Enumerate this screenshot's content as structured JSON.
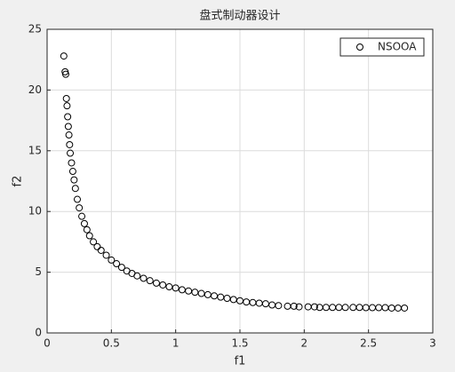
{
  "chart_data": {
    "type": "scatter",
    "title": "盘式制动器设计",
    "x_label": "f1",
    "y_label": "f2",
    "x": [
      0.13,
      0.14,
      0.145,
      0.15,
      0.155,
      0.16,
      0.165,
      0.17,
      0.175,
      0.18,
      0.19,
      0.2,
      0.21,
      0.22,
      0.235,
      0.25,
      0.27,
      0.29,
      0.31,
      0.33,
      0.36,
      0.39,
      0.42,
      0.46,
      0.5,
      0.54,
      0.58,
      0.62,
      0.66,
      0.7,
      0.75,
      0.8,
      0.85,
      0.9,
      0.95,
      1.0,
      1.05,
      1.1,
      1.15,
      1.2,
      1.25,
      1.3,
      1.35,
      1.4,
      1.45,
      1.5,
      1.55,
      1.6,
      1.65,
      1.7,
      1.75,
      1.8,
      1.87,
      1.92,
      1.96,
      2.03,
      2.08,
      2.12,
      2.17,
      2.22,
      2.27,
      2.32,
      2.38,
      2.43,
      2.48,
      2.53,
      2.58,
      2.63,
      2.68,
      2.73,
      2.78
    ],
    "series": [
      {
        "name": "NSOOA",
        "color": "#000000",
        "values": [
          22.8,
          21.5,
          21.3,
          19.3,
          18.7,
          17.8,
          17.0,
          16.3,
          15.5,
          14.8,
          14.0,
          13.3,
          12.6,
          11.9,
          11.0,
          10.3,
          9.6,
          9.0,
          8.5,
          8.0,
          7.5,
          7.1,
          6.8,
          6.4,
          6.0,
          5.7,
          5.4,
          5.1,
          4.9,
          4.7,
          4.5,
          4.3,
          4.1,
          3.95,
          3.8,
          3.7,
          3.55,
          3.45,
          3.35,
          3.25,
          3.15,
          3.05,
          2.95,
          2.85,
          2.75,
          2.65,
          2.55,
          2.5,
          2.45,
          2.4,
          2.3,
          2.25,
          2.2,
          2.2,
          2.15,
          2.15,
          2.15,
          2.1,
          2.1,
          2.1,
          2.1,
          2.1,
          2.1,
          2.1,
          2.08,
          2.08,
          2.08,
          2.08,
          2.05,
          2.05,
          2.05
        ]
      }
    ],
    "xlim": [
      0,
      3
    ],
    "xticks": [
      0,
      0.5,
      1,
      1.5,
      2,
      2.5,
      3
    ],
    "ylim": [
      0,
      25
    ],
    "yticks": [
      0,
      5,
      10,
      15,
      20,
      25
    ],
    "grid": true,
    "legend_position": "northeast"
  }
}
